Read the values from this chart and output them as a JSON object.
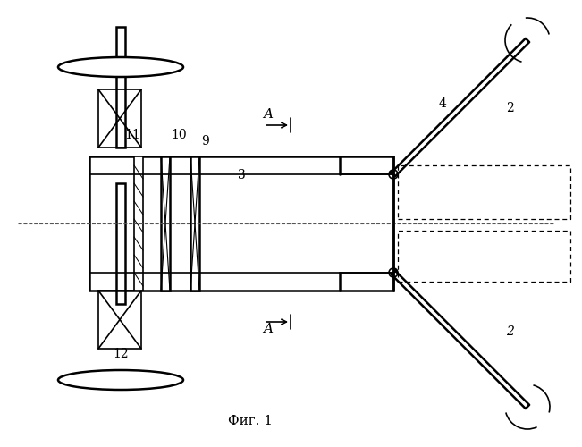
{
  "fig_label": "Фиг. 1",
  "background": "#ffffff",
  "line_color": "#000000",
  "dashed_color": "#888888",
  "label_2_top": "2",
  "label_2_bot": "2",
  "label_3": "3",
  "label_4": "4",
  "label_9": "9",
  "label_10": "10",
  "label_11": "11",
  "label_12": "12",
  "arrow_label": "A"
}
